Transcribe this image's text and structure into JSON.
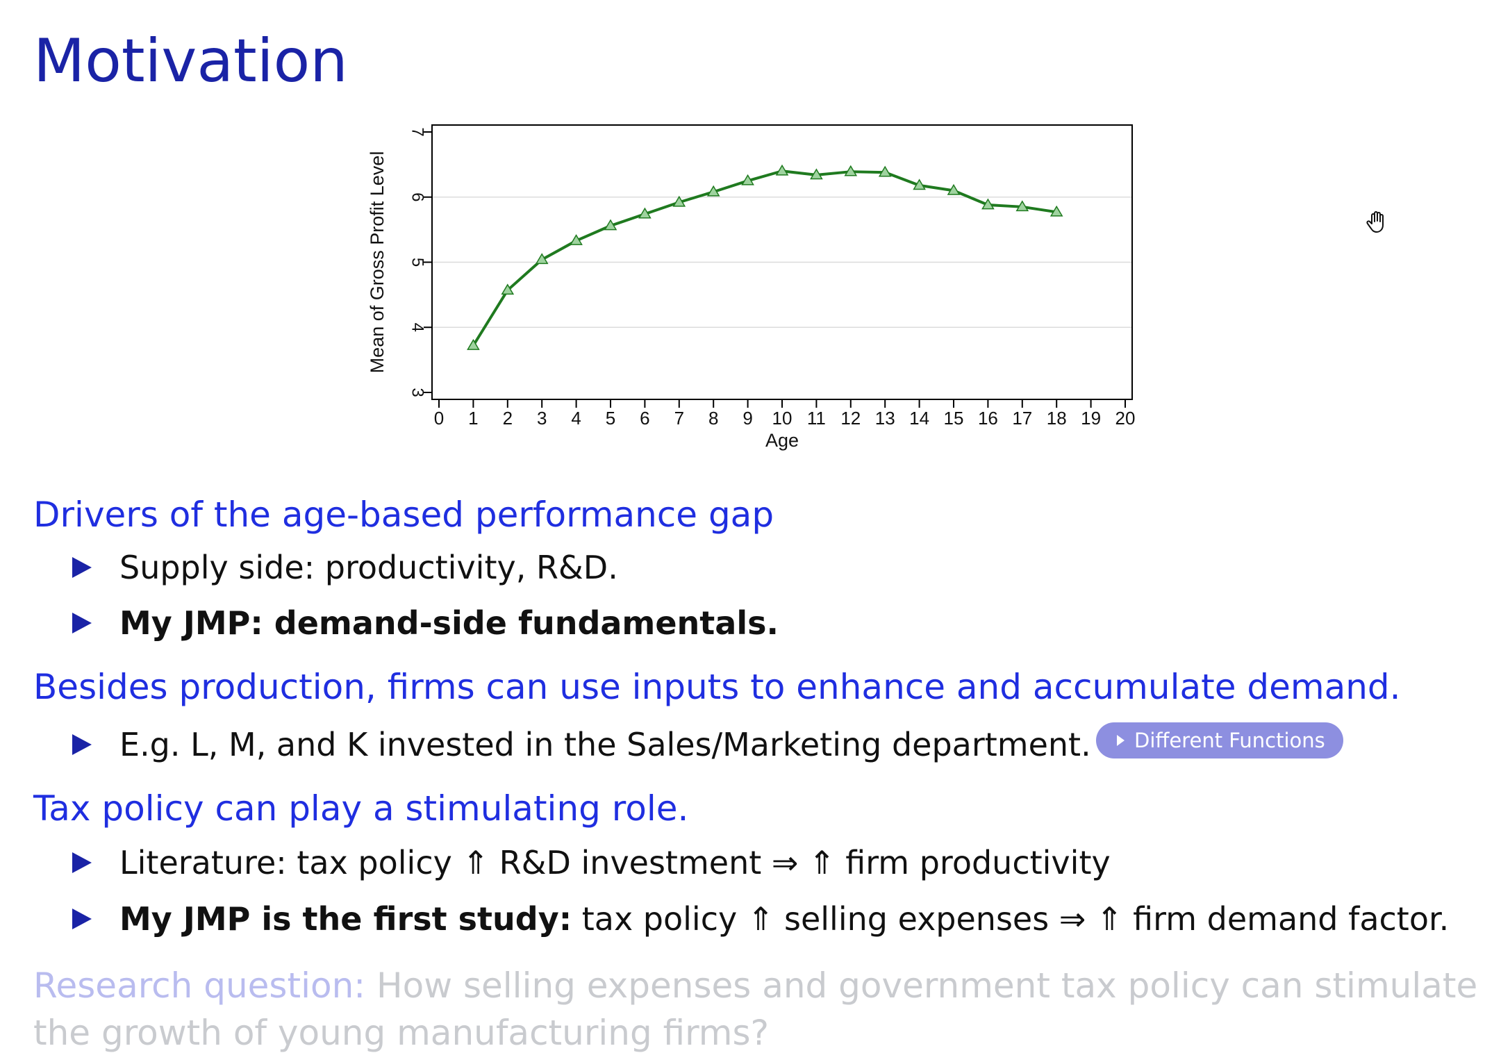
{
  "slide": {
    "title": "Motivation",
    "sections": [
      {
        "heading": "Drivers of the age-based performance gap",
        "bullets": [
          {
            "plain": "Supply side: productivity, R&D."
          },
          {
            "bold": "My JMP: demand-side fundamentals."
          }
        ]
      },
      {
        "heading": "Besides production, firms can use inputs to enhance and accumulate demand.",
        "bullets": [
          {
            "plain": "E.g. L, M, and K invested in the Sales/Marketing department."
          }
        ],
        "button_label": "Different Functions"
      },
      {
        "heading": "Tax policy can play a stimulating role.",
        "bullets": [
          {
            "plain": "Literature: tax policy ⇑ R&D investment ⇒ ⇑ firm productivity"
          },
          {
            "bold": "My JMP is the first study:",
            "plain": " tax policy ⇑ selling expenses ⇒ ⇑ firm demand factor."
          }
        ]
      }
    ],
    "research_question": {
      "label": "Research question:",
      "line1": " How selling expenses and government tax policy can stimulate",
      "line2": "the growth of young manufacturing firms?"
    }
  },
  "chart_data": {
    "type": "line",
    "xlabel": "Age",
    "ylabel": "Mean of Gross Profit Level",
    "xlim": [
      0,
      20
    ],
    "ylim": [
      3,
      7
    ],
    "xticks": [
      0,
      1,
      2,
      3,
      4,
      5,
      6,
      7,
      8,
      9,
      10,
      11,
      12,
      13,
      14,
      15,
      16,
      17,
      18,
      19,
      20
    ],
    "yticks": [
      3,
      4,
      5,
      6,
      7
    ],
    "grid": true,
    "color": "#1f7a1f",
    "marker": "triangle",
    "x": [
      1,
      2,
      3,
      4,
      5,
      6,
      7,
      8,
      9,
      10,
      11,
      12,
      13,
      14,
      15,
      16,
      17,
      18
    ],
    "y": [
      3.72,
      4.57,
      5.04,
      5.33,
      5.56,
      5.74,
      5.92,
      6.08,
      6.25,
      6.4,
      6.34,
      6.39,
      6.38,
      6.18,
      6.1,
      5.88,
      5.85,
      5.77
    ]
  }
}
